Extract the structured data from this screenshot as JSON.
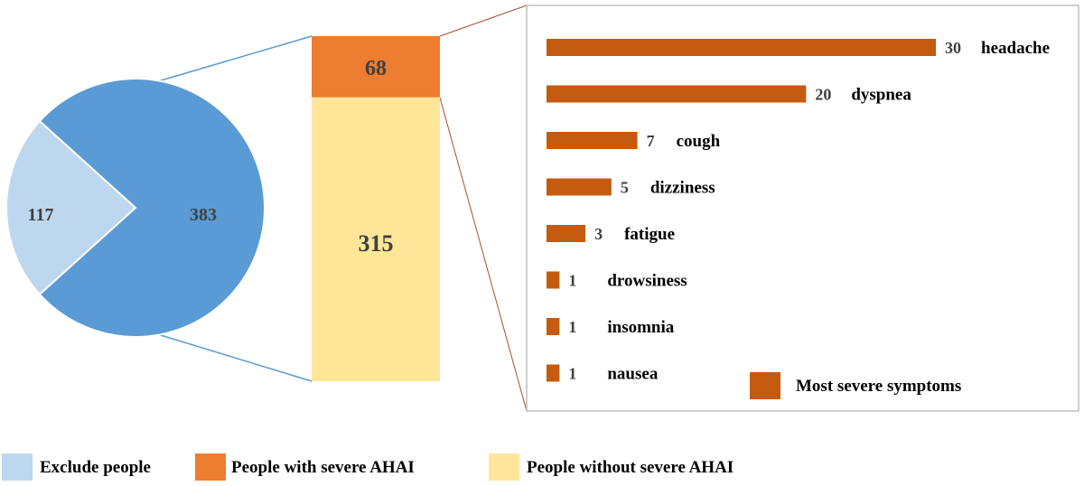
{
  "chart_data": [
    {
      "type": "pie",
      "slices": [
        {
          "label": "Exclude people",
          "value": 117,
          "color": "#bdd7ee"
        },
        {
          "label": "",
          "value": 383,
          "color": "#5b9bd5"
        }
      ]
    },
    {
      "type": "bar",
      "orientation": "stacked-vertical",
      "segments": [
        {
          "label": "People with severe AHAI",
          "value": 68,
          "color": "#ed7d31"
        },
        {
          "label": "People without severe AHAI",
          "value": 315,
          "color": "#ffe699"
        }
      ]
    },
    {
      "type": "bar",
      "orientation": "horizontal",
      "series": [
        {
          "name": "Most severe symptoms",
          "color": "#c55a11",
          "categories": [
            "headache",
            "dyspnea",
            "cough",
            "dizziness",
            "fatigue",
            "drowsiness",
            "insomnia",
            "nausea"
          ],
          "values": [
            30,
            20,
            7,
            5,
            3,
            1,
            1,
            1
          ]
        }
      ],
      "legend": "bottom-right"
    }
  ],
  "legend": {
    "items": [
      {
        "label": "Exclude people",
        "color": "#bdd7ee"
      },
      {
        "label": "People with severe AHAI",
        "color": "#ed7d31"
      },
      {
        "label": "People without severe AHAI",
        "color": "#ffe699"
      }
    ]
  }
}
